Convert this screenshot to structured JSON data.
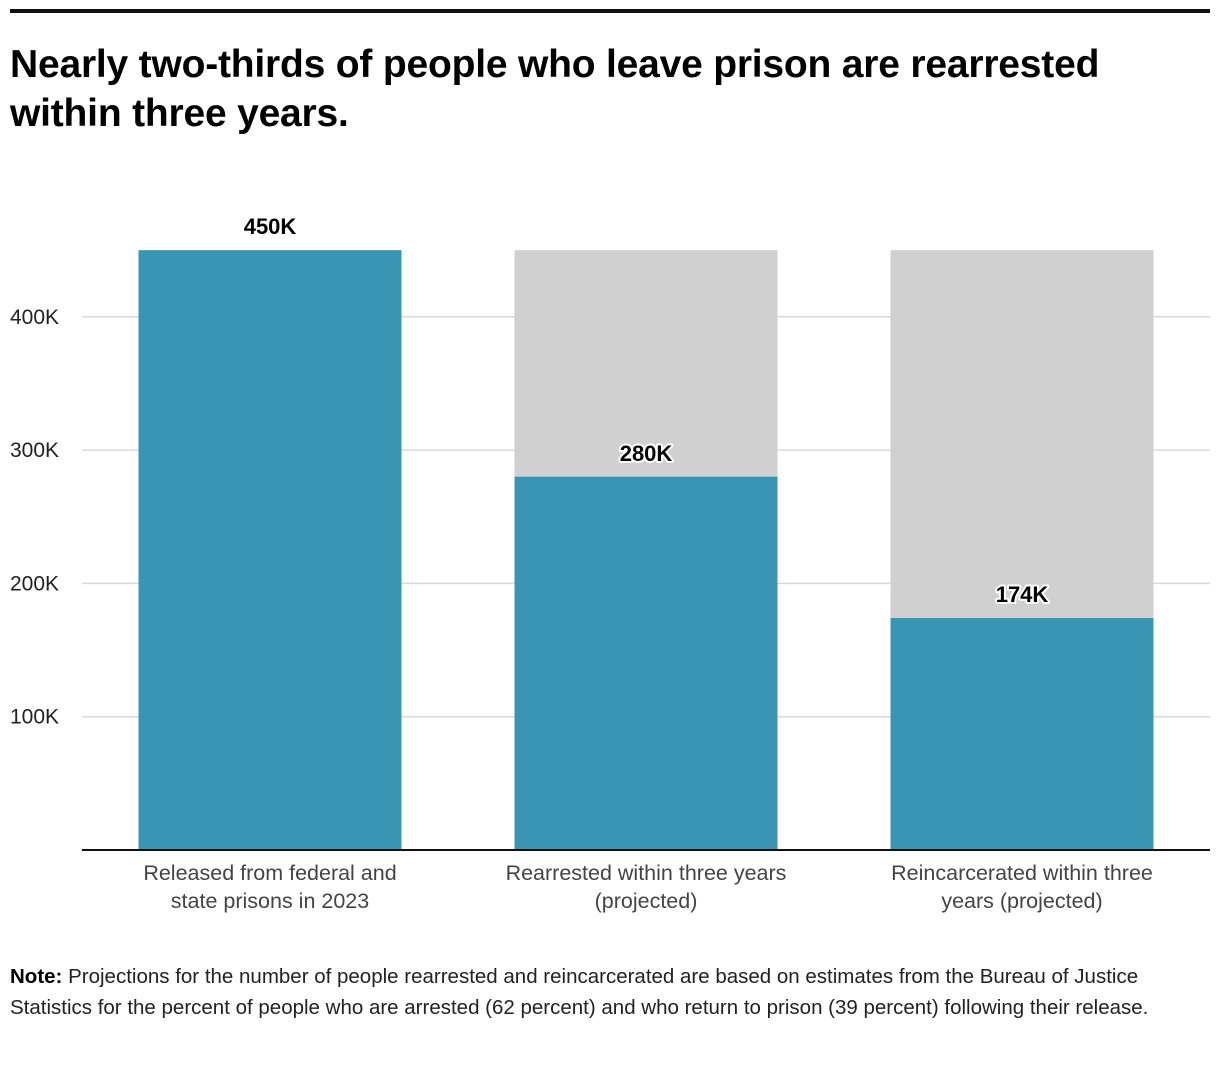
{
  "title": "Nearly two-thirds of people who leave prison are rearrested within three years.",
  "note": {
    "label": "Note:",
    "text": "Projections for the number of people rearrested and reincarcerated are based on estimates from the Bureau of Justice Statistics for the percent of people who are arrested (62 percent) and who return to prison (39 percent) following their release."
  },
  "colors": {
    "bar": "#3a95b4",
    "background_bar": "#d0d0d0",
    "grid": "#d9d9d9",
    "axis": "#111111"
  },
  "chart_data": {
    "type": "bar",
    "title": "Nearly two-thirds of people who leave prison are rearrested within three years.",
    "xlabel": "",
    "ylabel": "",
    "categories": [
      "Released from federal and state prisons in 2023",
      "Rearrested within three years (projected)",
      "Reincarcerated within three years (projected)"
    ],
    "category_lines": [
      [
        "Released from federal and",
        "state prisons in 2023"
      ],
      [
        "Rearrested within three years",
        "(projected)"
      ],
      [
        "Reincarcerated within three",
        "years (projected)"
      ]
    ],
    "values": [
      450000,
      280000,
      174000
    ],
    "data_labels": [
      "450K",
      "280K",
      "174K"
    ],
    "background_total": 450000,
    "ylim": [
      0,
      450000
    ],
    "yticks": [
      100000,
      200000,
      300000,
      400000
    ],
    "ytick_labels": [
      "100K",
      "200K",
      "300K",
      "400K"
    ],
    "grid": true,
    "legend": "none"
  }
}
